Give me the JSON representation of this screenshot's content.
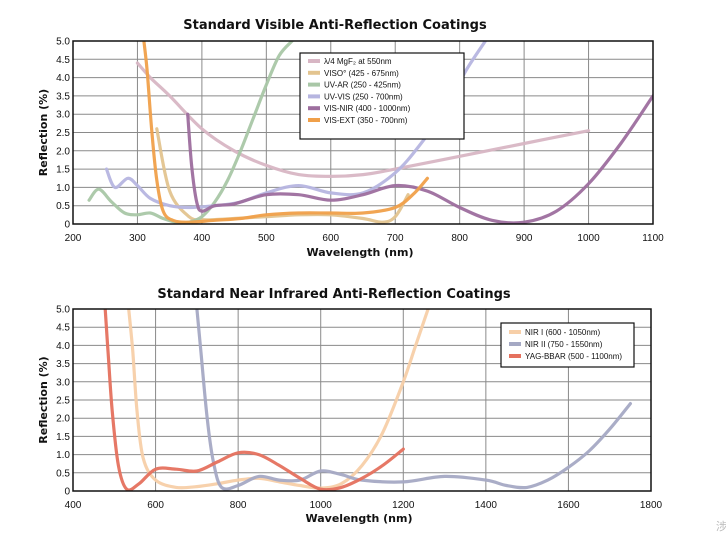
{
  "watermark": "涉",
  "chart_data": [
    {
      "type": "line",
      "title": "Standard Visible Anti-Reflection Coatings",
      "xlabel": "Wavelength (nm)",
      "ylabel": "Reflection (%)",
      "xlim": [
        200,
        1100
      ],
      "ylim": [
        0,
        5.0
      ],
      "xticks": [
        200,
        300,
        400,
        500,
        600,
        700,
        800,
        900,
        1000,
        1100
      ],
      "yticks": [
        0,
        0.5,
        1.0,
        1.5,
        2.0,
        2.5,
        3.0,
        3.5,
        4.0,
        4.5,
        5.0
      ],
      "ytick_labels": [
        "0",
        "0.5",
        "1.0",
        "1.5",
        "2.0",
        "2.5",
        "3.0",
        "3.5",
        "4.0",
        "4.5",
        "5.0"
      ],
      "grid": true,
      "legend_position": "top-center",
      "series": [
        {
          "name": "λ/4 MgF₂ at 550nm",
          "color": "#d8b6c4",
          "x": [
            300,
            320,
            350,
            400,
            450,
            500,
            550,
            600,
            650,
            700,
            800,
            900,
            1000
          ],
          "y": [
            4.4,
            4.0,
            3.5,
            2.6,
            2.0,
            1.6,
            1.35,
            1.3,
            1.35,
            1.5,
            1.85,
            2.2,
            2.55
          ]
        },
        {
          "name": "VISO° (425 - 675nm)",
          "color": "#e3c48f",
          "x": [
            330,
            350,
            380,
            400,
            420,
            450,
            500,
            550,
            600,
            650,
            680,
            700,
            720
          ],
          "y": [
            2.6,
            0.9,
            0.2,
            0.12,
            0.12,
            0.15,
            0.2,
            0.25,
            0.25,
            0.15,
            0.05,
            0.2,
            0.8
          ]
        },
        {
          "name": "UV-AR (250 - 425nm)",
          "color": "#a9c7a7",
          "x": [
            225,
            240,
            260,
            280,
            300,
            320,
            340,
            360,
            380,
            400,
            420,
            440,
            460,
            480,
            500,
            520,
            540
          ],
          "y": [
            0.65,
            0.95,
            0.6,
            0.3,
            0.25,
            0.3,
            0.15,
            0.05,
            0.05,
            0.2,
            0.6,
            1.2,
            2.0,
            2.9,
            3.8,
            4.6,
            5.0
          ]
        },
        {
          "name": "UV-VIS (250 - 700nm)",
          "color": "#b6b5e0",
          "x": [
            252,
            265,
            285,
            300,
            320,
            350,
            380,
            420,
            460,
            500,
            550,
            600,
            650,
            700,
            740,
            780,
            810,
            840
          ],
          "y": [
            1.5,
            1.0,
            1.25,
            1.05,
            0.7,
            0.5,
            0.45,
            0.5,
            0.6,
            0.85,
            1.05,
            0.85,
            0.85,
            1.4,
            2.2,
            3.2,
            4.2,
            5.0
          ]
        },
        {
          "name": "VIS-NIR (400 - 1000nm)",
          "color": "#9d6e9e",
          "x": [
            378,
            384,
            392,
            400,
            420,
            450,
            500,
            550,
            600,
            650,
            700,
            750,
            800,
            850,
            900,
            950,
            1000,
            1050,
            1100
          ],
          "y": [
            3.0,
            1.6,
            0.6,
            0.35,
            0.5,
            0.55,
            0.8,
            0.8,
            0.65,
            0.8,
            1.05,
            0.9,
            0.45,
            0.1,
            0.05,
            0.35,
            1.1,
            2.2,
            3.5
          ]
        },
        {
          "name": "VIS-EXT (350 - 700nm)",
          "color": "#f0a04a",
          "x": [
            310,
            315,
            322,
            330,
            340,
            355,
            380,
            420,
            460,
            500,
            550,
            600,
            650,
            700,
            730,
            750
          ],
          "y": [
            5.0,
            4.2,
            2.6,
            1.2,
            0.35,
            0.1,
            0.05,
            0.1,
            0.15,
            0.25,
            0.3,
            0.3,
            0.3,
            0.45,
            0.85,
            1.25
          ]
        }
      ]
    },
    {
      "type": "line",
      "title": "Standard Near Infrared Anti-Reflection Coatings",
      "xlabel": "Wavelength (nm)",
      "ylabel": "Reflection (%)",
      "xlim": [
        400,
        1800
      ],
      "ylim": [
        0,
        5.0
      ],
      "xticks": [
        400,
        600,
        800,
        1000,
        1200,
        1400,
        1600,
        1800
      ],
      "yticks": [
        0,
        0.5,
        1.0,
        1.5,
        2.0,
        2.5,
        3.0,
        3.5,
        4.0,
        4.5,
        5.0
      ],
      "ytick_labels": [
        "0",
        "0.5",
        "1.0",
        "1.5",
        "2.0",
        "2.5",
        "3.0",
        "3.5",
        "4.0",
        "4.5",
        "5.0"
      ],
      "grid": true,
      "legend_position": "top-right",
      "series": [
        {
          "name": "NIR I (600 - 1050nm)",
          "color": "#f7cfa8",
          "x": [
            535,
            545,
            555,
            570,
            600,
            650,
            700,
            750,
            800,
            850,
            900,
            950,
            1000,
            1050,
            1100,
            1150,
            1200,
            1230,
            1260
          ],
          "y": [
            5.0,
            3.8,
            2.2,
            0.9,
            0.3,
            0.1,
            0.12,
            0.2,
            0.3,
            0.35,
            0.25,
            0.15,
            0.08,
            0.2,
            0.7,
            1.6,
            3.0,
            4.0,
            5.0
          ]
        },
        {
          "name": "NIR II (750 - 1550nm)",
          "color": "#a5a9c4",
          "x": [
            700,
            710,
            725,
            740,
            760,
            800,
            850,
            900,
            950,
            1000,
            1050,
            1100,
            1200,
            1300,
            1400,
            1450,
            1500,
            1550,
            1600,
            1650,
            1700,
            1750
          ],
          "y": [
            5.0,
            3.8,
            2.0,
            0.8,
            0.1,
            0.15,
            0.4,
            0.3,
            0.3,
            0.55,
            0.45,
            0.3,
            0.25,
            0.4,
            0.3,
            0.15,
            0.1,
            0.3,
            0.65,
            1.1,
            1.7,
            2.4
          ]
        },
        {
          "name": "YAG-BBAR (500 - 1100nm)",
          "color": "#e5715e",
          "x": [
            478,
            485,
            495,
            510,
            530,
            560,
            600,
            650,
            700,
            750,
            800,
            850,
            900,
            950,
            1000,
            1050,
            1100,
            1150,
            1200
          ],
          "y": [
            5.0,
            3.8,
            2.2,
            0.7,
            0.05,
            0.2,
            0.6,
            0.6,
            0.55,
            0.8,
            1.05,
            1.0,
            0.7,
            0.35,
            0.05,
            0.1,
            0.35,
            0.7,
            1.15
          ]
        }
      ]
    }
  ]
}
